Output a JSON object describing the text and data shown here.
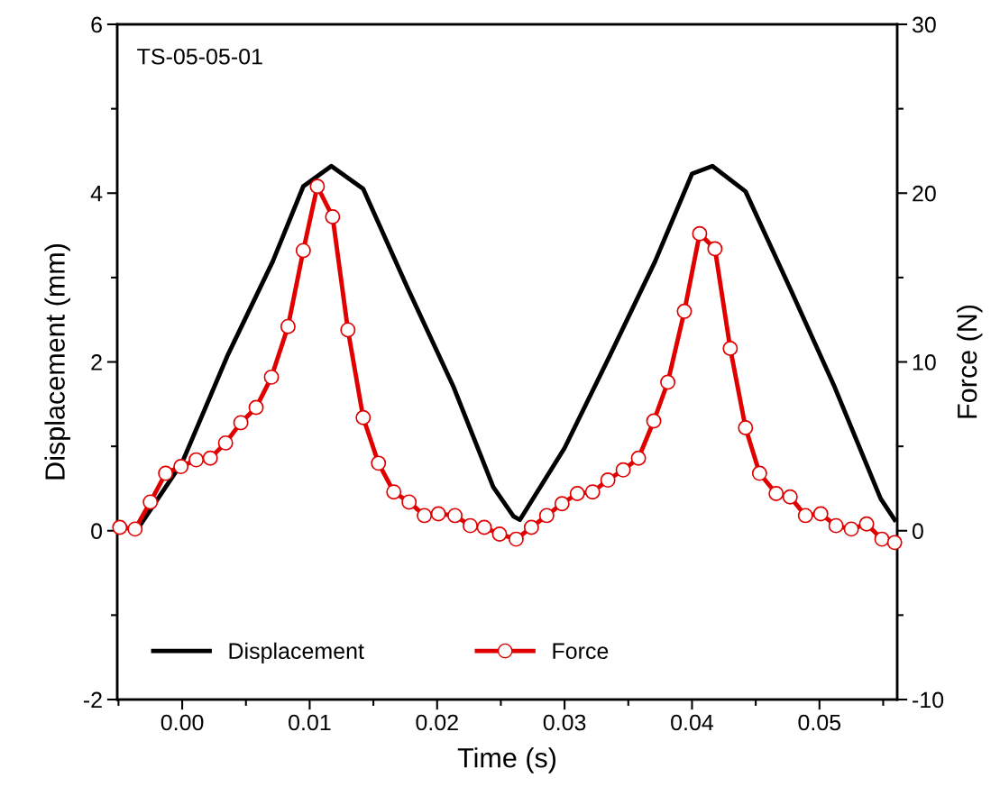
{
  "chart_data": {
    "type": "line",
    "xlabel": "Time (s)",
    "ylabel": "Displacement (mm)",
    "y2label": "Force (N)",
    "annotations": [
      "TS-05-05-01"
    ],
    "xlim": [
      -0.0051,
      0.0561
    ],
    "xticks": [
      {
        "value": 0,
        "label": "0.00"
      },
      0.01,
      0.02,
      0.03,
      0.04,
      0.05
    ],
    "ylim": [
      -2,
      6
    ],
    "yticks": [
      -2,
      0,
      2,
      4,
      6
    ],
    "y2lim": [
      -10,
      30
    ],
    "y2ticks": [
      -10,
      0,
      10,
      20,
      30
    ],
    "grid": false,
    "legend": "bottom left",
    "series": [
      {
        "name": "Displacement",
        "color": "#000000",
        "marker": "none",
        "x": [
          -0.0035,
          0.0,
          0.0036,
          0.0071,
          0.0095,
          0.0117,
          0.0142,
          0.0177,
          0.0213,
          0.0244,
          0.026,
          0.0265,
          0.03,
          0.0336,
          0.0371,
          0.04,
          0.0416,
          0.0442,
          0.0477,
          0.0512,
          0.0548,
          0.0559
        ],
        "values": [
          0.02,
          0.81,
          2.09,
          3.19,
          4.08,
          4.32,
          4.05,
          2.87,
          1.7,
          0.52,
          0.17,
          0.13,
          0.98,
          2.09,
          3.19,
          4.23,
          4.32,
          4.02,
          2.87,
          1.7,
          0.38,
          0.13
        ]
      },
      {
        "name": "Force",
        "color": "#e00000",
        "marker": "circle",
        "axis": "y2",
        "x": [
          -0.0049,
          -0.0037,
          -0.0025,
          -0.0013,
          -0.0001,
          0.0011,
          0.0022,
          0.0034,
          0.0046,
          0.0058,
          0.007,
          0.0083,
          0.0095,
          0.0106,
          0.0118,
          0.013,
          0.0142,
          0.0154,
          0.0166,
          0.0178,
          0.019,
          0.0201,
          0.0214,
          0.0226,
          0.0237,
          0.0249,
          0.0262,
          0.0274,
          0.0286,
          0.0298,
          0.031,
          0.0322,
          0.0334,
          0.0346,
          0.0358,
          0.037,
          0.0381,
          0.0394,
          0.0406,
          0.0418,
          0.043,
          0.0442,
          0.0453,
          0.0466,
          0.0477,
          0.0489,
          0.0501,
          0.0513,
          0.0525,
          0.0537,
          0.0549,
          0.0559
        ],
        "values": [
          0.2,
          0.1,
          1.7,
          3.4,
          3.8,
          4.2,
          4.3,
          5.2,
          6.4,
          7.3,
          9.1,
          12.1,
          16.6,
          20.4,
          18.6,
          11.9,
          6.7,
          4.0,
          2.3,
          1.7,
          0.9,
          1.0,
          0.9,
          0.3,
          0.2,
          -0.2,
          -0.5,
          0.2,
          0.9,
          1.6,
          2.2,
          2.3,
          3.0,
          3.6,
          4.3,
          6.5,
          8.8,
          13.0,
          17.6,
          16.7,
          10.8,
          6.1,
          3.4,
          2.2,
          2.0,
          0.9,
          1.0,
          0.3,
          0.1,
          0.4,
          -0.5,
          -0.7
        ]
      }
    ]
  }
}
